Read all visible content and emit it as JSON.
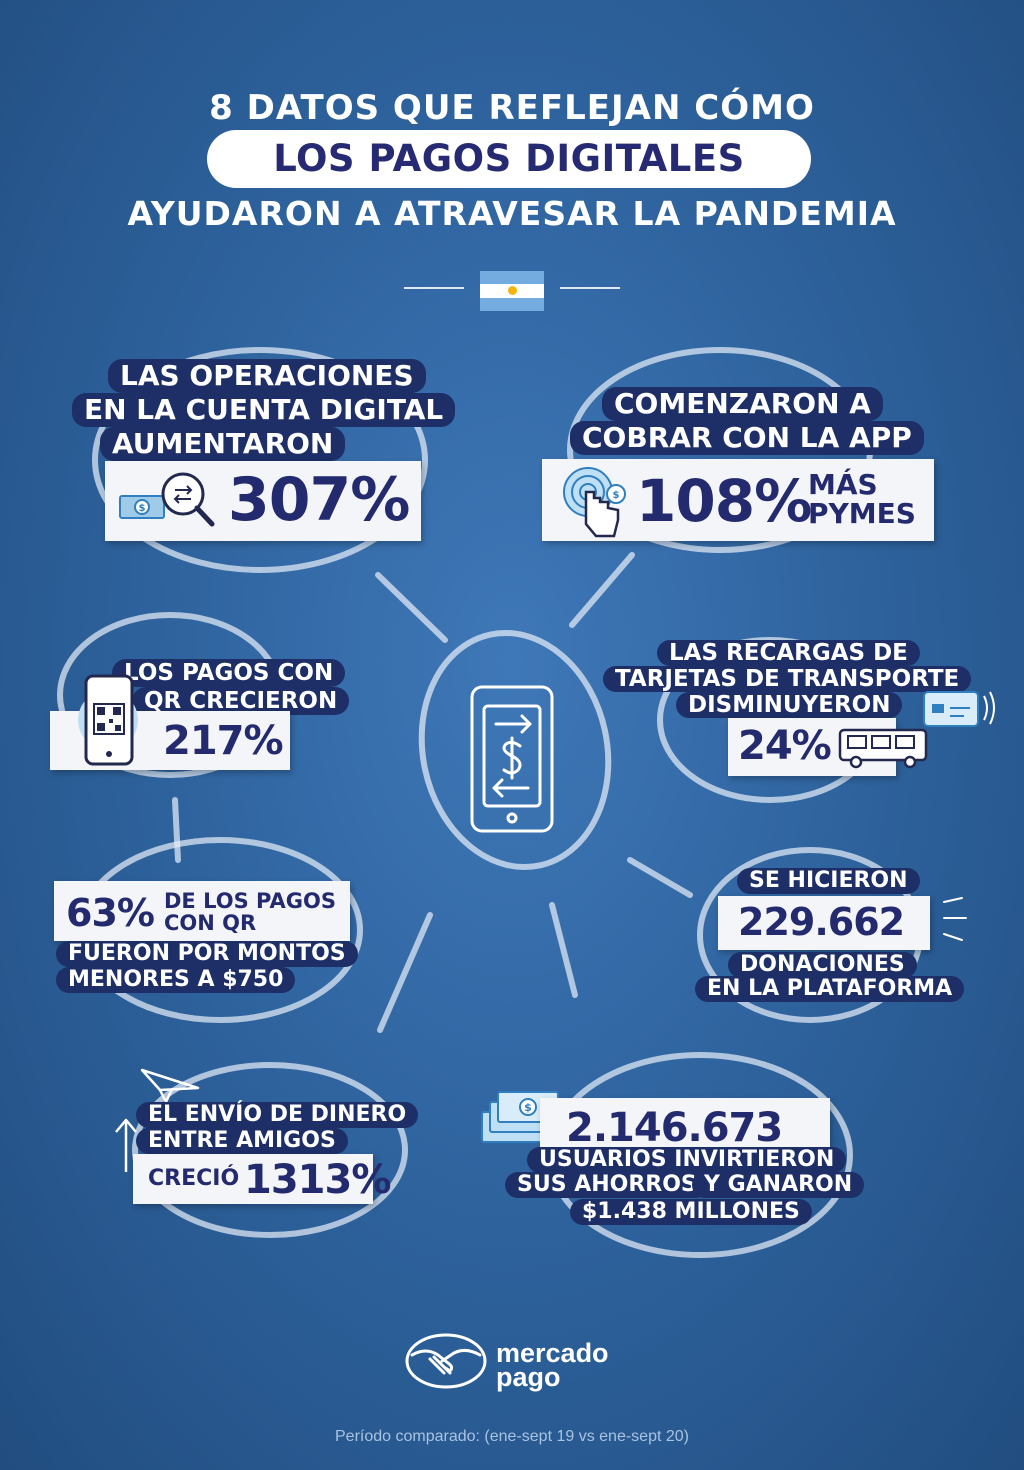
{
  "header": {
    "title_line1": "8 DATOS QUE REFLEJAN CÓMO",
    "title_highlight": "LOS PAGOS DIGITALES",
    "title_line3": "AYUDARON A ATRAVESAR LA PANDEMIA"
  },
  "facts": {
    "cuenta": {
      "line1": "LAS OPERACIONES",
      "line2": "EN LA CUENTA DIGITAL",
      "line3": "AUMENTARON",
      "value": "307%"
    },
    "app": {
      "line1": "COMENZARON A",
      "line2": "COBRAR CON LA APP",
      "value": "108%",
      "suffix1": "MÁS",
      "suffix2": "PYMES"
    },
    "qr": {
      "line1": "LOS PAGOS CON",
      "line2": "QR CRECIERON",
      "value": "217%"
    },
    "recargas": {
      "line1": "LAS RECARGAS DE",
      "line2": "TARJETAS DE TRANSPORTE",
      "line3": "DISMINUYERON",
      "value": "24%"
    },
    "montos": {
      "value": "63%",
      "text1": "DE LOS PAGOS",
      "text2": "CON QR",
      "line1": "FUERON POR MONTOS",
      "line2": "MENORES A $750"
    },
    "donaciones": {
      "line1": "SE HICIERON",
      "value": "229.662",
      "line2": "DONACIONES",
      "line3": "EN LA PLATAFORMA"
    },
    "envio": {
      "line1": "EL ENVÍO DE DINERO",
      "line2": "ENTRE AMIGOS",
      "prefix": "CRECIÓ",
      "value": "1313%"
    },
    "inversion": {
      "value": "2.146.673",
      "line1": "USUARIOS INVIRTIERON",
      "line2a": "SUS AHORROS",
      "line2b": "Y GANARON",
      "line3": "$1.438 MILLONES"
    }
  },
  "logo": {
    "line1": "mercado",
    "line2": "pago"
  },
  "footer": {
    "note": "Período comparado: (ene-sept 19 vs ene-sept 20)"
  },
  "colors": {
    "background": "#2f649f",
    "navy": "#1d2f66",
    "number": "#232a6d",
    "flag_blue": "#74acdf",
    "flag_sun": "#f6b40e"
  },
  "icons": [
    "money-magnifier-icon",
    "touch-payment-icon",
    "phone-qr-icon",
    "transport-card-bus-icon",
    "phone-dollar-icon",
    "paper-plane-icon",
    "banknotes-icon",
    "mercado-pago-handshake-icon"
  ]
}
